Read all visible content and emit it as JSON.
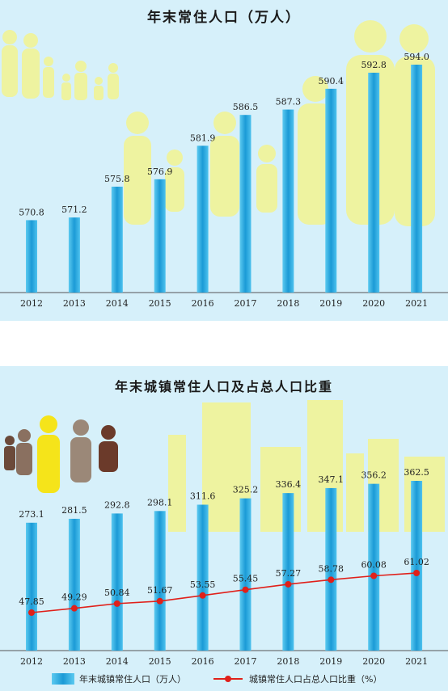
{
  "colors": {
    "background": "#d6f0fa",
    "bar": "#1b9ad6",
    "line": "#e0201a",
    "silhouette": "#eef3a0"
  },
  "chart_data": [
    {
      "type": "bar",
      "title": "年末常住人口（万人）",
      "categories": [
        "2012",
        "2013",
        "2014",
        "2015",
        "2016",
        "2017",
        "2018",
        "2019",
        "2020",
        "2021"
      ],
      "values": [
        570.8,
        571.2,
        575.8,
        576.9,
        581.9,
        586.5,
        587.3,
        590.4,
        592.8,
        594.0
      ],
      "value_labels": [
        "570.8",
        "571.2",
        "575.8",
        "576.9",
        "581.9",
        "586.5",
        "587.3",
        "590.4",
        "592.8",
        "594.0"
      ]
    },
    {
      "type": "bar",
      "title": "年末城镇常住人口及占总人口比重",
      "categories": [
        "2012",
        "2013",
        "2014",
        "2015",
        "2016",
        "2017",
        "2018",
        "2019",
        "2020",
        "2021"
      ],
      "series": [
        {
          "name": "年末城镇常住人口（万人）",
          "type": "bar",
          "values": [
            273.1,
            281.5,
            292.8,
            298.1,
            311.6,
            325.2,
            336.4,
            347.1,
            356.2,
            362.5
          ],
          "value_labels": [
            "273.1",
            "281.5",
            "292.8",
            "298.1",
            "311.6",
            "325.2",
            "336.4",
            "347.1",
            "356.2",
            "362.5"
          ]
        },
        {
          "name": "城镇常住人口占总人口比重（%）",
          "type": "line",
          "values": [
            47.85,
            49.29,
            50.84,
            51.67,
            53.55,
            55.45,
            57.27,
            58.78,
            60.08,
            61.02
          ],
          "value_labels": [
            "47.85",
            "49.29",
            "50.84",
            "51.67",
            "53.55",
            "55.45",
            "57.27",
            "58.78",
            "60.08",
            "61.02"
          ]
        }
      ],
      "legend": [
        "年末城镇常住人口（万人）",
        "城镇常住人口占总人口比重（%）"
      ],
      "legend_position": "bottom"
    }
  ]
}
